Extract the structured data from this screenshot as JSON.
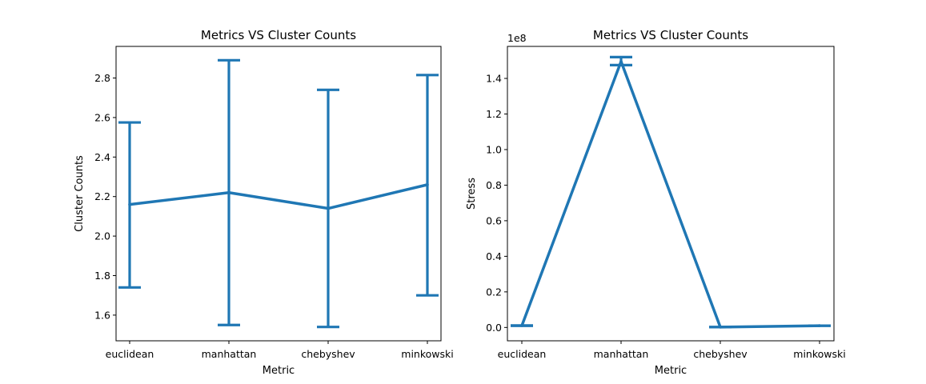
{
  "chart_data": [
    {
      "type": "line",
      "title": "Metrics VS Cluster Counts",
      "xlabel": "Metric",
      "ylabel": "Cluster Counts",
      "categories": [
        "euclidean",
        "manhattan",
        "chebyshev",
        "minkowski"
      ],
      "values": [
        2.16,
        2.22,
        2.14,
        2.26
      ],
      "error_low": [
        1.74,
        1.55,
        1.54,
        1.7
      ],
      "error_high": [
        2.575,
        2.89,
        2.74,
        2.815
      ],
      "ylim": [
        1.47,
        2.96
      ],
      "yticks": [
        1.6,
        1.8,
        2.0,
        2.2,
        2.4,
        2.6,
        2.8
      ],
      "ytick_labels": [
        "1.6",
        "1.8",
        "2.0",
        "2.2",
        "2.4",
        "2.6",
        "2.8"
      ],
      "offset_text": "",
      "color": "#1f77b4",
      "grid": false
    },
    {
      "type": "line",
      "title": "Metrics VS Cluster Counts",
      "xlabel": "Metric",
      "ylabel": "Stress",
      "categories": [
        "euclidean",
        "manhattan",
        "chebyshev",
        "minkowski"
      ],
      "values": [
        1000000,
        149500000,
        200000,
        1000000
      ],
      "error_low": [
        900000,
        147500000,
        200000,
        1000000
      ],
      "error_high": [
        1100000,
        152000000,
        200000,
        1000000
      ],
      "ylim": [
        -7500000,
        158000000
      ],
      "yticks": [
        0,
        20000000,
        40000000,
        60000000,
        80000000,
        100000000,
        120000000,
        140000000
      ],
      "ytick_labels": [
        "0.0",
        "0.2",
        "0.4",
        "0.6",
        "0.8",
        "1.0",
        "1.2",
        "1.4"
      ],
      "offset_text": "1e8",
      "color": "#1f77b4",
      "grid": false
    }
  ]
}
